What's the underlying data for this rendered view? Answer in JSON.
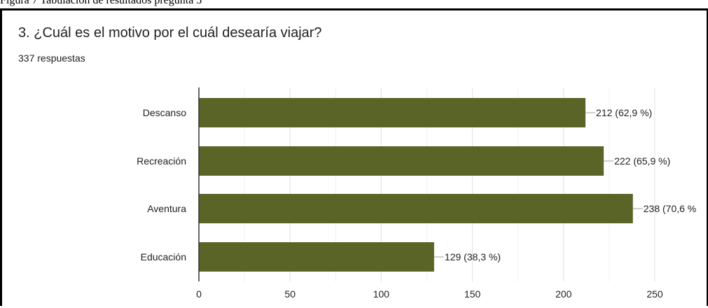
{
  "figure_caption": "Figura 7 Tabulación de resultados pregunta 3",
  "question": {
    "title": "3. ¿Cuál es el motivo por el cuál desearía viajar?",
    "responses": "337 respuestas"
  },
  "colors": {
    "bar": "#5a6426",
    "grid": "#e0e0e0",
    "axis": "#333333",
    "leader": "#9e9e9e"
  },
  "chart_data": {
    "type": "bar",
    "orientation": "horizontal",
    "categories": [
      "Descanso",
      "Recreación",
      "Aventura",
      "Educación"
    ],
    "values": [
      212,
      222,
      238,
      129
    ],
    "data_labels": [
      "212 (62,9 %)",
      "222 (65,9 %)",
      "238 (70,6 %",
      "129 (38,3 %)"
    ],
    "xticks": [
      0,
      50,
      100,
      150,
      200,
      250
    ],
    "xlim": [
      0,
      250
    ],
    "grid": true,
    "legend": "none"
  }
}
